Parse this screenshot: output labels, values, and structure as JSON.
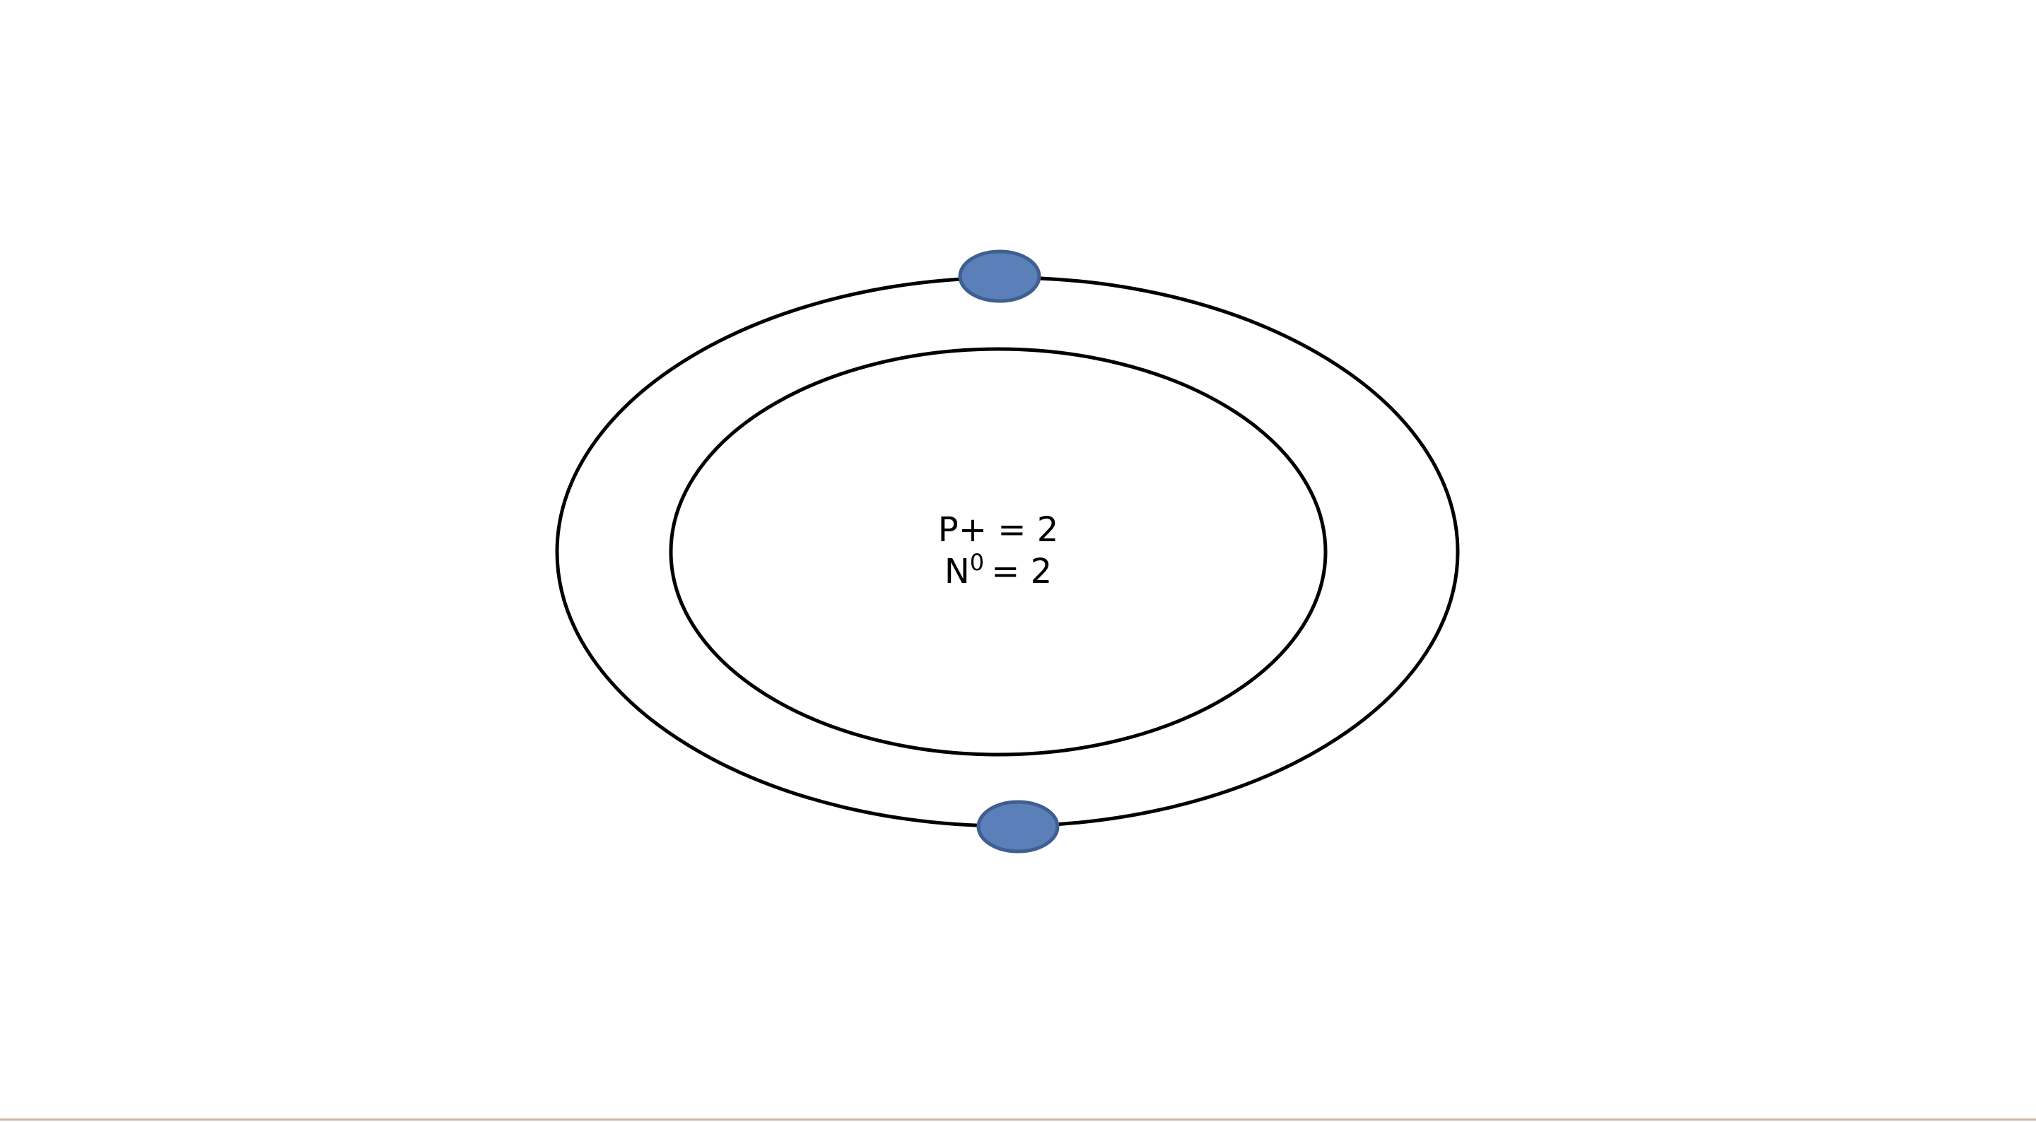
{
  "nucleus": {
    "protons": {
      "symbol": "P+",
      "equals": "=",
      "count": "2"
    },
    "neutrons": {
      "symbol": "N",
      "superscript": "0",
      "equals": "=",
      "count": "2"
    }
  },
  "electrons": {
    "count": 2,
    "fill_color": "#5a7fb9",
    "stroke_color": "#3f5f8f"
  },
  "colors": {
    "orbit": "#000000",
    "background": "#ffffff"
  }
}
